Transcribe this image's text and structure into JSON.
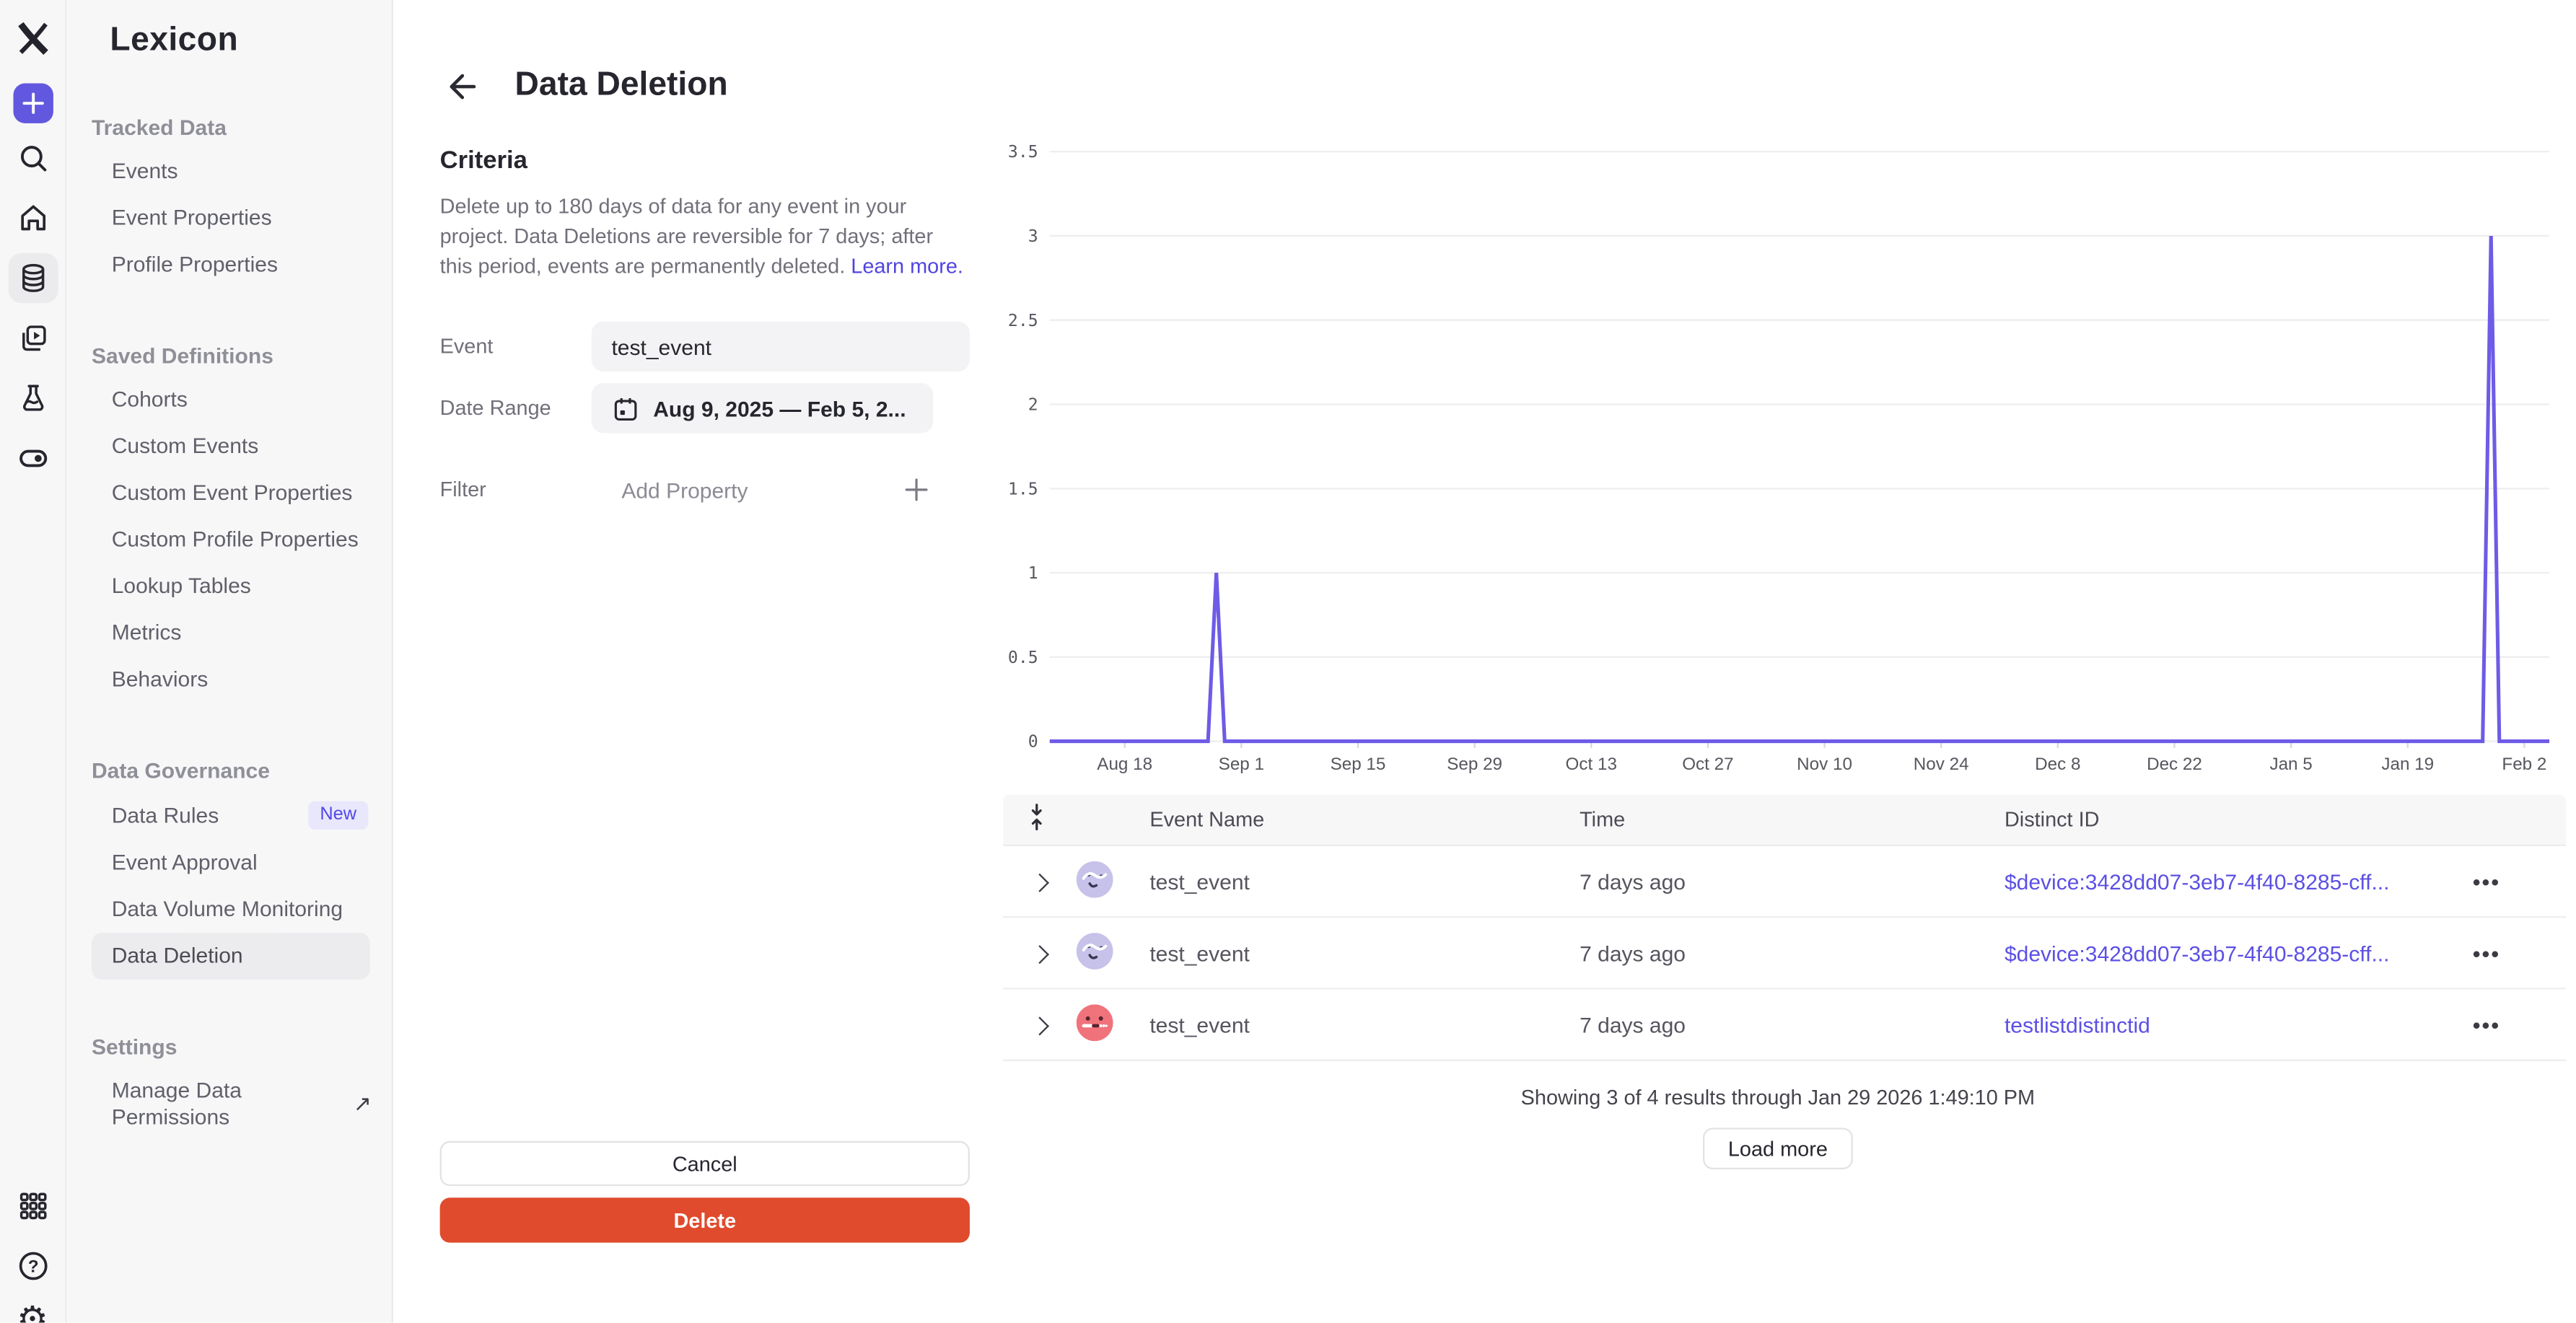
{
  "sidebar": {
    "title": "Lexicon",
    "sections": [
      {
        "heading": "Tracked Data",
        "items": [
          {
            "label": "Events"
          },
          {
            "label": "Event Properties"
          },
          {
            "label": "Profile Properties"
          }
        ]
      },
      {
        "heading": "Saved Definitions",
        "items": [
          {
            "label": "Cohorts"
          },
          {
            "label": "Custom Events"
          },
          {
            "label": "Custom Event Properties"
          },
          {
            "label": "Custom Profile Properties"
          },
          {
            "label": "Lookup Tables"
          },
          {
            "label": "Metrics"
          },
          {
            "label": "Behaviors"
          }
        ]
      },
      {
        "heading": "Data Governance",
        "items": [
          {
            "label": "Data Rules",
            "badge": "New"
          },
          {
            "label": "Event Approval"
          },
          {
            "label": "Data Volume Monitoring"
          },
          {
            "label": "Data Deletion",
            "selected": true
          }
        ]
      },
      {
        "heading": "Settings",
        "items": [
          {
            "label": "Manage Data Permissions",
            "external": true
          }
        ]
      }
    ]
  },
  "page": {
    "title": "Data Deletion"
  },
  "criteria": {
    "heading": "Criteria",
    "description": "Delete up to 180 days of data for any event in your project. Data Deletions are reversible for 7 days; after this period, events are permanently deleted.",
    "learn_more": "Learn more.",
    "fields": {
      "event": {
        "label": "Event",
        "value": "test_event"
      },
      "date_range": {
        "label": "Date Range",
        "value": "Aug 9, 2025 — Feb 5, 2..."
      },
      "filter": {
        "label": "Filter",
        "placeholder": "Add Property"
      }
    }
  },
  "actions": {
    "cancel_label": "Cancel",
    "delete_label": "Delete"
  },
  "chart_data": {
    "type": "line",
    "title": "",
    "x_range": {
      "start": "Aug 9, 2025",
      "end": "Feb 5, 2026",
      "total_days": 180
    },
    "x_ticks": [
      {
        "label": "Aug 18",
        "day": 9
      },
      {
        "label": "Sep 1",
        "day": 23
      },
      {
        "label": "Sep 15",
        "day": 37
      },
      {
        "label": "Sep 29",
        "day": 51
      },
      {
        "label": "Oct 13",
        "day": 65
      },
      {
        "label": "Oct 27",
        "day": 79
      },
      {
        "label": "Nov 10",
        "day": 93
      },
      {
        "label": "Nov 24",
        "day": 107
      },
      {
        "label": "Dec 8",
        "day": 121
      },
      {
        "label": "Dec 22",
        "day": 135
      },
      {
        "label": "Jan 5",
        "day": 149
      },
      {
        "label": "Jan 19",
        "day": 163
      },
      {
        "label": "Feb 2",
        "day": 177
      }
    ],
    "y_ticks": [
      "0",
      "0.5",
      "1",
      "1.5",
      "2",
      "2.5",
      "3",
      "3.5"
    ],
    "ylim": [
      0,
      3.5
    ],
    "grid": true,
    "legend": "none",
    "line_color": "#6e5be6",
    "series": [
      {
        "name": "test_event",
        "baseline": 0,
        "spikes": [
          {
            "date": "Aug 29, 2025",
            "day": 20,
            "value": 1
          },
          {
            "date": "Jan 29, 2026",
            "day": 173,
            "value": 3
          }
        ]
      }
    ]
  },
  "table": {
    "columns": [
      "Event Name",
      "Time",
      "Distinct ID"
    ],
    "rows": [
      {
        "name": "test_event",
        "time": "7 days ago",
        "distinct_id": "$device:3428dd07-3eb7-4f40-8285-cff...",
        "avatar": "lavender"
      },
      {
        "name": "test_event",
        "time": "7 days ago",
        "distinct_id": "$device:3428dd07-3eb7-4f40-8285-cff...",
        "avatar": "lavender"
      },
      {
        "name": "test_event",
        "time": "7 days ago",
        "distinct_id": "testlistdistinctid",
        "avatar": "coral"
      }
    ]
  },
  "results": {
    "summary": "Showing 3 of 4 results through Jan 29 2026 1:49:10 PM",
    "load_more_label": "Load more"
  },
  "icons": {
    "rail": [
      "mixpanel-logo",
      "add",
      "search",
      "home",
      "database",
      "boards",
      "flask",
      "toggle",
      "apps-grid",
      "help",
      "gear"
    ],
    "glyphs": {
      "ellipsis": "•••",
      "external_link": "↗",
      "gear": "⚙",
      "question": "?"
    }
  },
  "colors": {
    "accent_purple": "#6258df",
    "link_purple": "#5044e0",
    "delete_red": "#e04b2d",
    "chart_line": "#6e5be6",
    "selected_bg": "#ececee",
    "badge_bg": "#e9e7fb",
    "badge_text": "#5348e8",
    "avatar_lavender": "#c7c2e9",
    "avatar_coral": "#f0737b",
    "sidebar_bg": "#f7f7f8"
  }
}
